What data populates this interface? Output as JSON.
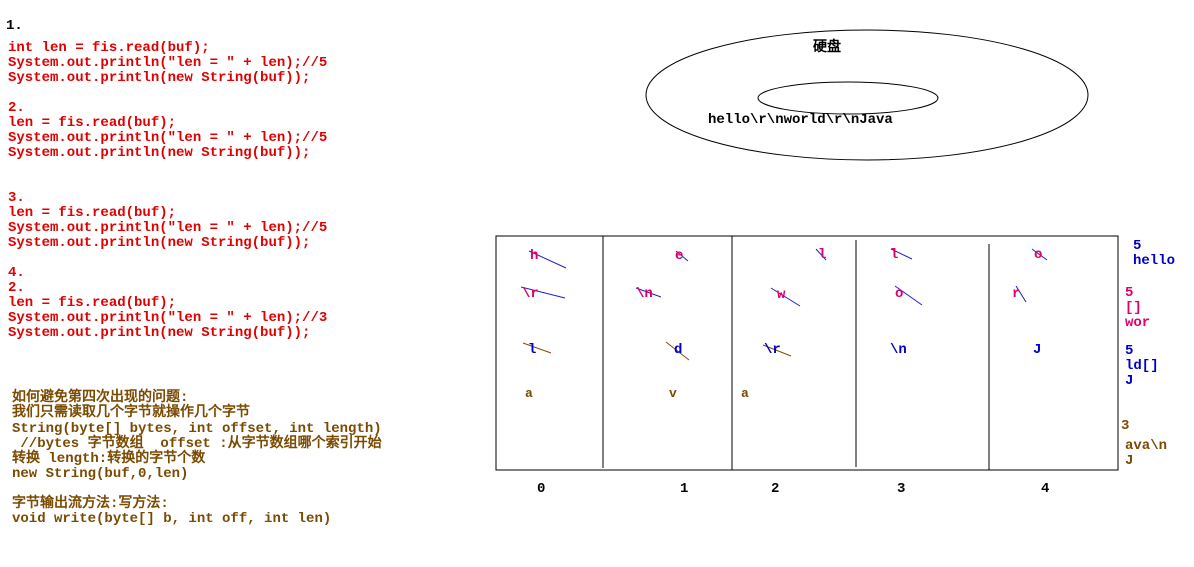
{
  "step1": {
    "number": "1.",
    "lines": [
      "int len = fis.read(buf);",
      "System.out.println(\"len = \" + len);//5",
      "System.out.println(new String(buf));"
    ]
  },
  "step2": {
    "number": "2.",
    "lines": [
      "len = fis.read(buf);",
      "System.out.println(\"len = \" + len);//5",
      "System.out.println(new String(buf));"
    ]
  },
  "step3": {
    "number": "3.",
    "lines": [
      "len = fis.read(buf);",
      "System.out.println(\"len = \" + len);//5",
      "System.out.println(new String(buf));"
    ]
  },
  "step4": {
    "number": "4.",
    "sub": "2.",
    "lines": [
      "len = fis.read(buf);",
      "System.out.println(\"len = \" + len);//3",
      "System.out.println(new String(buf));"
    ]
  },
  "notes": {
    "lines": [
      "如何避免第四次出现的问题:",
      "我们只需读取几个字节就操作几个字节",
      "String(byte[] bytes, int offset, int length)",
      " //bytes 字节数组  offset :从字节数组哪个索引开始",
      "转换 length:转换的字节个数",
      "new String(buf,0,len)",
      "",
      "字节输出流方法:写方法:",
      "void write(byte[] b, int off, int len)"
    ]
  },
  "disk": {
    "label": "硬盘",
    "content": "hello\\r\\nworld\\r\\nJava"
  },
  "buffer": {
    "indices": [
      "0",
      "1",
      "2",
      "3",
      "4"
    ],
    "rows": [
      [
        "h",
        "e",
        "l",
        "l",
        "o"
      ],
      [
        "\\r",
        "\\n",
        "w",
        "o",
        "r"
      ],
      [
        "l",
        "d",
        "\\r",
        "\\n",
        "J"
      ],
      [
        "a",
        "v",
        "a",
        "",
        ""
      ]
    ],
    "row_colors": [
      "#e0006a",
      "#e0006a",
      "#0000cc",
      "#7a4a00"
    ]
  },
  "results": [
    {
      "len": "5",
      "text": [
        "hello"
      ],
      "color": "#0000cc"
    },
    {
      "len": "5",
      "text": [
        "[]",
        "wor"
      ],
      "color": "#e0006a"
    },
    {
      "len": "5",
      "text": [
        "ld[]",
        "J"
      ],
      "color": "#0000cc"
    },
    {
      "len": "3",
      "text": [
        "ava\\n",
        "J"
      ],
      "color": "#7a4a00"
    }
  ]
}
